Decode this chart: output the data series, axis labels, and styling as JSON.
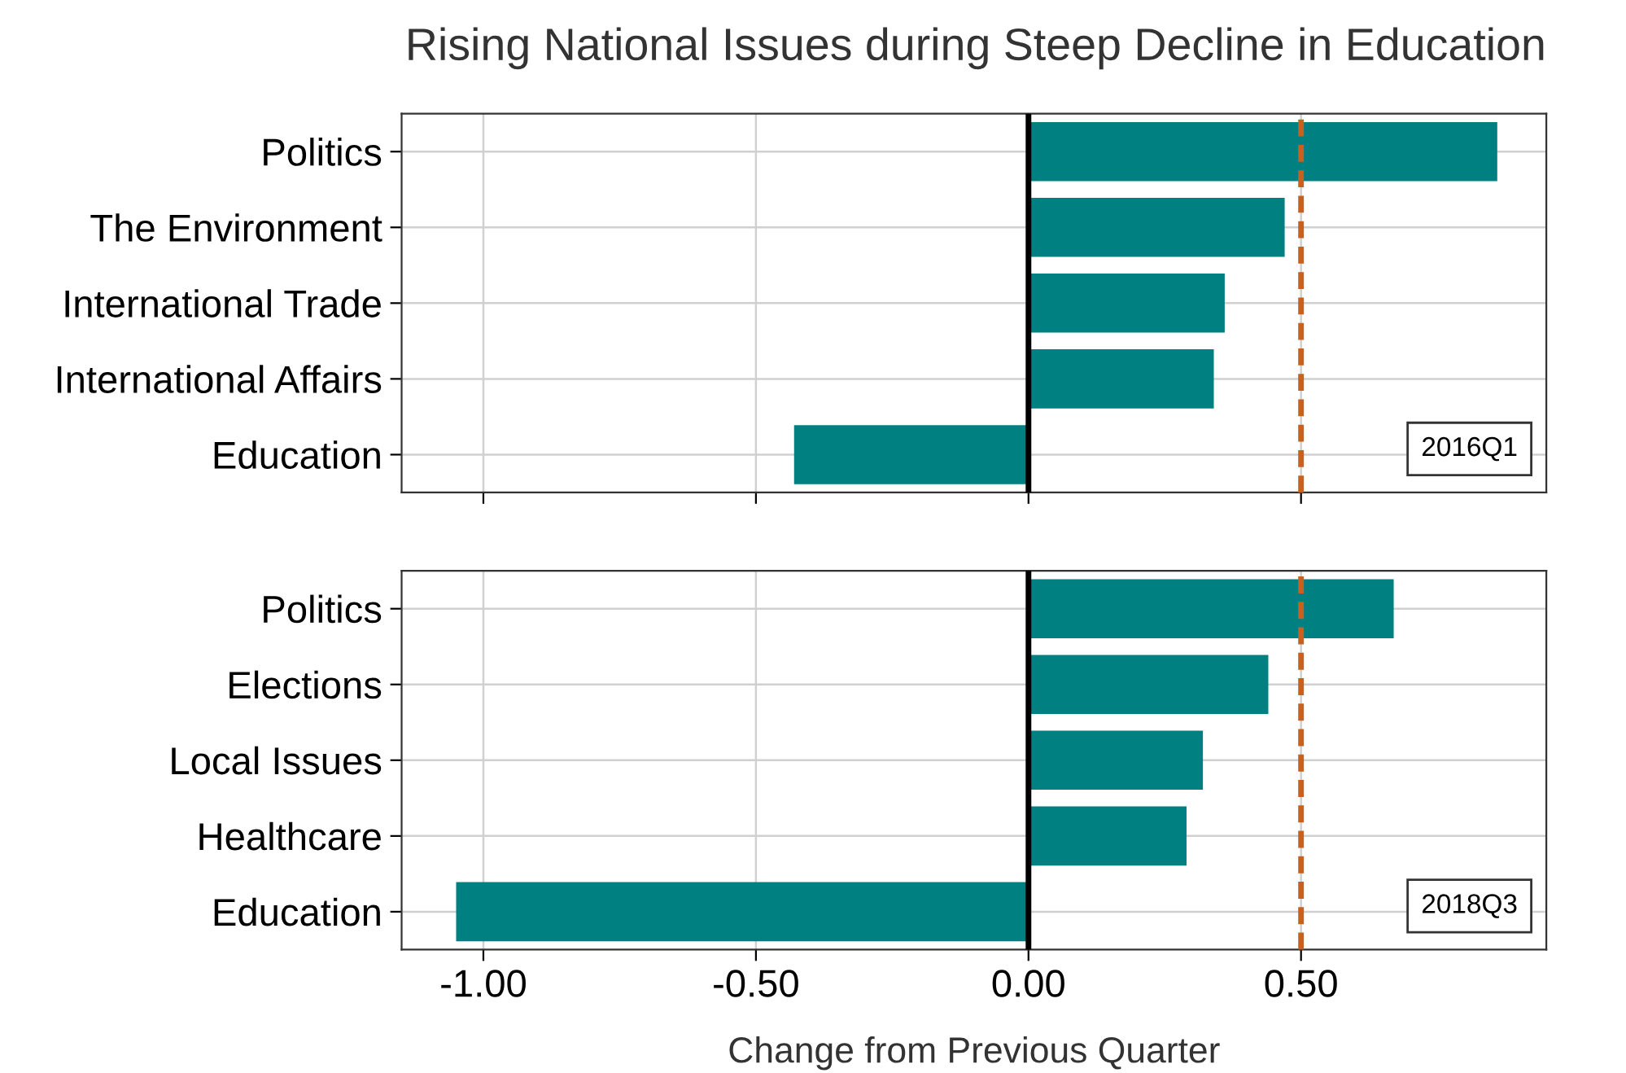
{
  "chart_data": [
    {
      "type": "bar",
      "orientation": "horizontal",
      "title": "Rising National Issues during Steep Decline in Education",
      "categories": [
        "Politics",
        "The Environment",
        "International Trade",
        "International Affairs",
        "Education"
      ],
      "values": [
        0.86,
        0.47,
        0.36,
        0.34,
        -0.43
      ],
      "color": "#008080",
      "xlim": [
        -1.15,
        0.95
      ],
      "xticks": [
        {
          "value": -1,
          "label": null
        },
        {
          "value": -0.5,
          "label": null
        },
        {
          "value": 0,
          "label": null
        },
        {
          "value": 0.5,
          "label": null
        }
      ],
      "grid": true,
      "tick_labels": "y",
      "annotations": [
        "2016Q1"
      ],
      "ref_lines": [
        {
          "axis": "x",
          "value": 0,
          "color": "#000000",
          "line_style": "solid"
        },
        {
          "axis": "x",
          "value": 0.5,
          "color": "#c8611e",
          "line_style": "dashed"
        }
      ]
    },
    {
      "type": "bar",
      "orientation": "horizontal",
      "xlabel": "Change from Previous Quarter",
      "categories": [
        "Politics",
        "Elections",
        "Local Issues",
        "Healthcare",
        "Education"
      ],
      "values": [
        0.67,
        0.44,
        0.32,
        0.29,
        -1.05
      ],
      "color": "#008080",
      "xlim": [
        -1.15,
        0.95
      ],
      "xticks": [
        {
          "value": -1,
          "label": "-1.00"
        },
        {
          "value": -0.5,
          "label": "-0.50"
        },
        {
          "value": 0,
          "label": "0.00"
        },
        {
          "value": 0.5,
          "label": "0.50"
        }
      ],
      "grid": true,
      "annotations": [
        "2018Q3"
      ],
      "ref_lines": [
        {
          "axis": "x",
          "value": 0,
          "color": "#000000",
          "line_style": "solid"
        },
        {
          "axis": "x",
          "value": 0.5,
          "color": "#c8611e",
          "line_style": "dashed"
        }
      ]
    }
  ]
}
